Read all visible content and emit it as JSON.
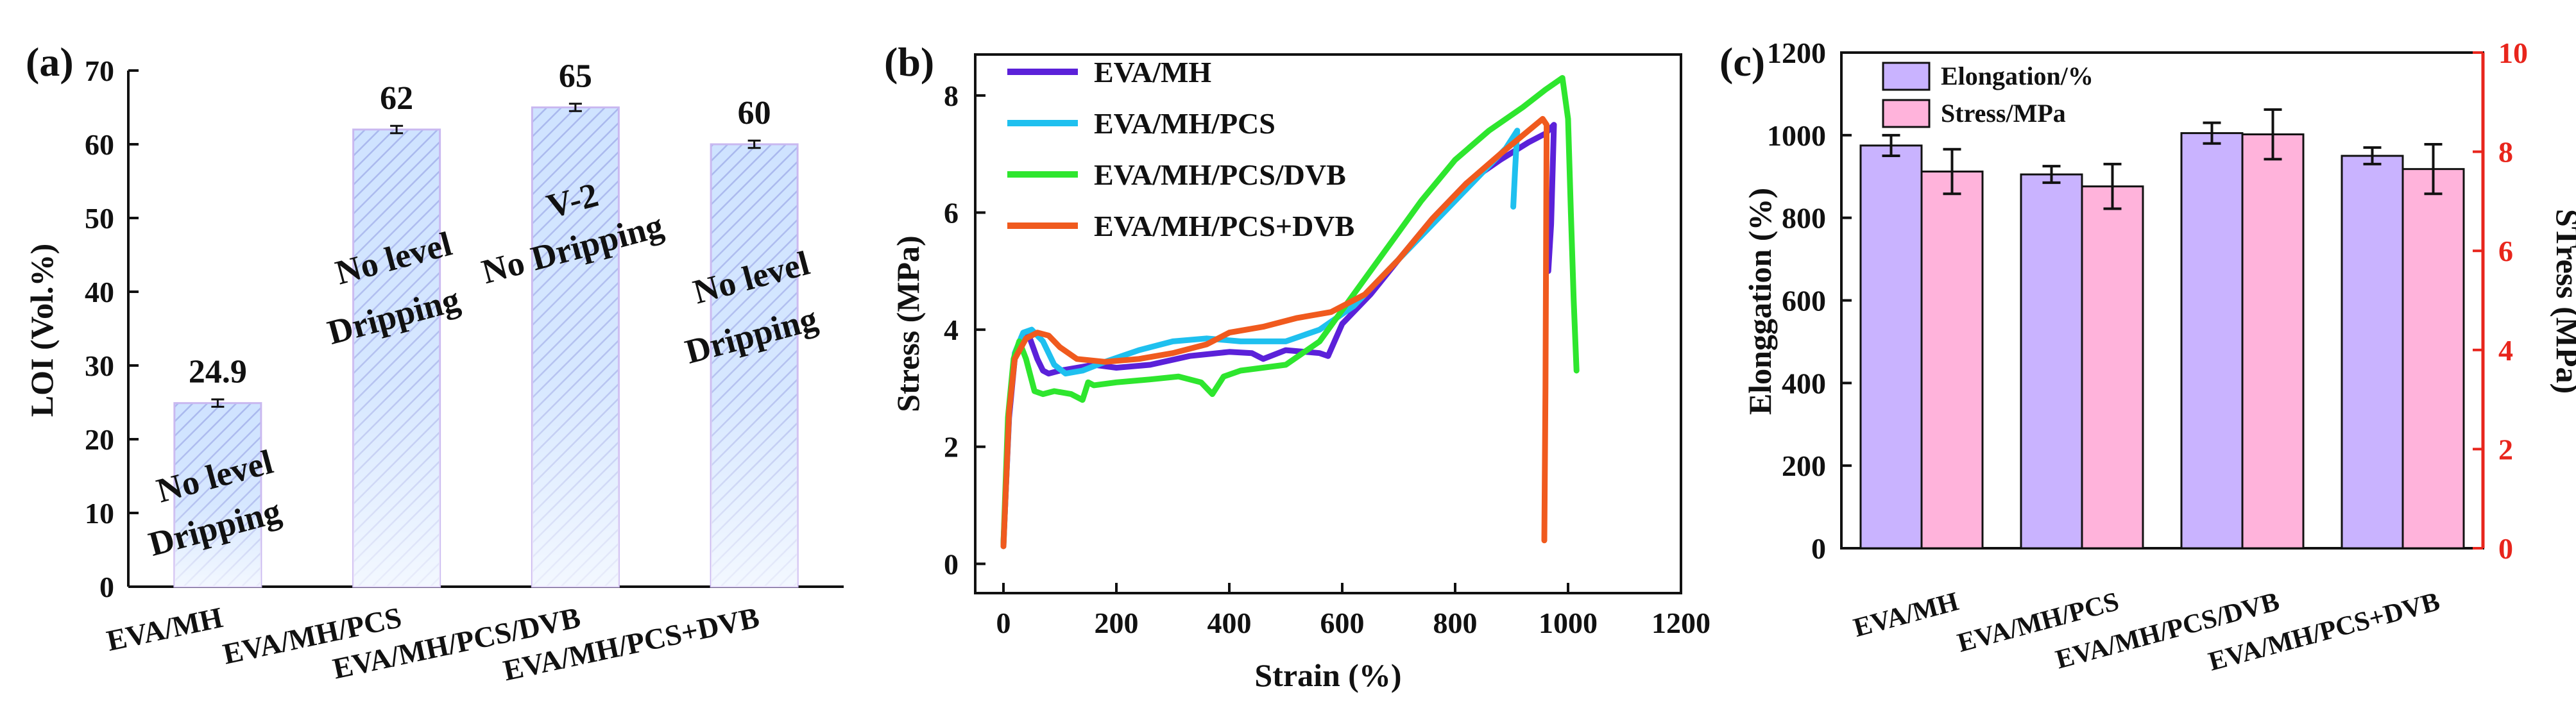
{
  "chart_data": [
    {
      "panel": "(a)",
      "type": "bar",
      "categories": [
        "EVA/MH",
        "EVA/MH/PCS",
        "EVA/MH/PCS/DVB",
        "EVA/MH/PCS+DVB"
      ],
      "values": [
        24.9,
        62,
        65,
        60
      ],
      "value_labels": [
        "24.9",
        "62",
        "65",
        "60"
      ],
      "errors": [
        0.5,
        0.5,
        0.5,
        0.5
      ],
      "bar_annotations": [
        [
          "No level",
          "Dripping"
        ],
        [
          "No level",
          "Dripping"
        ],
        [
          "V-2",
          "No Dripping"
        ],
        [
          "No level",
          "Dripping"
        ]
      ],
      "xlabel": "",
      "ylabel": "LOI (Vol.%)",
      "ylim": [
        0,
        70
      ],
      "yticks": [
        0,
        10,
        20,
        30,
        40,
        50,
        60,
        70
      ],
      "colors": {
        "fill": "#cfe3ff",
        "edge": "#c9b8f0",
        "hatch": "#b9c9f2"
      }
    },
    {
      "panel": "(b)",
      "type": "line",
      "xlabel": "Strain (%)",
      "ylabel": "Stress (MPa)",
      "xlim": [
        -50,
        1200
      ],
      "ylim": [
        -0.5,
        8.7
      ],
      "xticks": [
        0,
        200,
        400,
        600,
        800,
        1000,
        1200
      ],
      "yticks": [
        0,
        2,
        4,
        6,
        8
      ],
      "legend": "top-left",
      "series": [
        {
          "name": "EVA/MH",
          "color": "#5b21d9",
          "x": [
            0,
            10,
            20,
            30,
            45,
            60,
            70,
            80,
            100,
            130,
            160,
            200,
            260,
            330,
            400,
            440,
            460,
            500,
            560,
            575,
            600,
            650,
            700,
            760,
            820,
            880,
            930,
            960,
            975,
            970,
            965
          ],
          "y": [
            0.35,
            2.5,
            3.5,
            3.8,
            3.9,
            3.5,
            3.3,
            3.25,
            3.3,
            3.35,
            3.4,
            3.35,
            3.4,
            3.55,
            3.62,
            3.6,
            3.5,
            3.65,
            3.6,
            3.55,
            4.1,
            4.6,
            5.2,
            5.9,
            6.5,
            6.9,
            7.2,
            7.35,
            7.5,
            5.8,
            5.0
          ]
        },
        {
          "name": "EVA/MH/PCS",
          "color": "#1fc0ef",
          "x": [
            0,
            10,
            20,
            35,
            50,
            70,
            90,
            110,
            140,
            180,
            240,
            300,
            360,
            420,
            500,
            560,
            620,
            680,
            740,
            800,
            850,
            890,
            910,
            906,
            903
          ],
          "y": [
            0.3,
            2.6,
            3.6,
            3.95,
            4.0,
            3.8,
            3.4,
            3.25,
            3.3,
            3.45,
            3.65,
            3.8,
            3.85,
            3.8,
            3.8,
            4.0,
            4.4,
            5.0,
            5.6,
            6.2,
            6.7,
            7.1,
            7.4,
            6.7,
            6.1
          ]
        },
        {
          "name": "EVA/MH/PCS/DVB",
          "color": "#2ee62e",
          "x": [
            0,
            8,
            18,
            28,
            40,
            55,
            70,
            90,
            120,
            140,
            150,
            160,
            200,
            260,
            310,
            350,
            370,
            390,
            420,
            500,
            560,
            620,
            680,
            740,
            800,
            860,
            920,
            960,
            990,
            1000,
            1005,
            1010,
            1015
          ],
          "y": [
            0.35,
            2.5,
            3.5,
            3.8,
            3.5,
            2.95,
            2.9,
            2.95,
            2.9,
            2.8,
            3.1,
            3.05,
            3.1,
            3.15,
            3.2,
            3.1,
            2.9,
            3.2,
            3.3,
            3.4,
            3.8,
            4.6,
            5.4,
            6.2,
            6.9,
            7.4,
            7.8,
            8.1,
            8.3,
            7.6,
            6.0,
            4.5,
            3.3
          ]
        },
        {
          "name": "EVA/MH/PCS+DVB",
          "color": "#f05a1e",
          "x": [
            0,
            10,
            20,
            40,
            60,
            80,
            100,
            130,
            180,
            240,
            300,
            360,
            400,
            460,
            520,
            580,
            640,
            700,
            760,
            820,
            880,
            930,
            955,
            962,
            960,
            958
          ],
          "y": [
            0.3,
            2.6,
            3.5,
            3.85,
            3.95,
            3.9,
            3.7,
            3.5,
            3.45,
            3.5,
            3.6,
            3.75,
            3.95,
            4.05,
            4.2,
            4.3,
            4.6,
            5.2,
            5.9,
            6.5,
            7.0,
            7.4,
            7.6,
            7.5,
            3.0,
            0.4
          ]
        }
      ]
    },
    {
      "panel": "(c)",
      "type": "bar",
      "categories": [
        "EVA/MH",
        "EVA/MH/PCS",
        "EVA/MH/PCS/DVB",
        "EVA/MH/PCS+DVB"
      ],
      "xlabel": "",
      "ylabel": "Elonggation (%)",
      "y2label": "STress (MPa)",
      "ylim": [
        0,
        1200
      ],
      "yticks": [
        0,
        200,
        400,
        600,
        800,
        1000,
        1200
      ],
      "y2lim": [
        0,
        10
      ],
      "y2ticks": [
        0,
        2,
        4,
        6,
        8,
        10
      ],
      "legend": "top-left",
      "series": [
        {
          "name": "Elongation/%",
          "axis": "left",
          "color": "#c9b3ff",
          "values": [
            975,
            905,
            1005,
            950
          ],
          "errors": [
            25,
            20,
            25,
            20
          ]
        },
        {
          "name": "Stress/MPa",
          "axis": "right",
          "color": "#ffb3db",
          "values": [
            7.6,
            7.3,
            8.35,
            7.65
          ],
          "errors": [
            0.45,
            0.45,
            0.5,
            0.5
          ]
        }
      ],
      "colors": {
        "right_axis": "#e8251c"
      }
    }
  ]
}
